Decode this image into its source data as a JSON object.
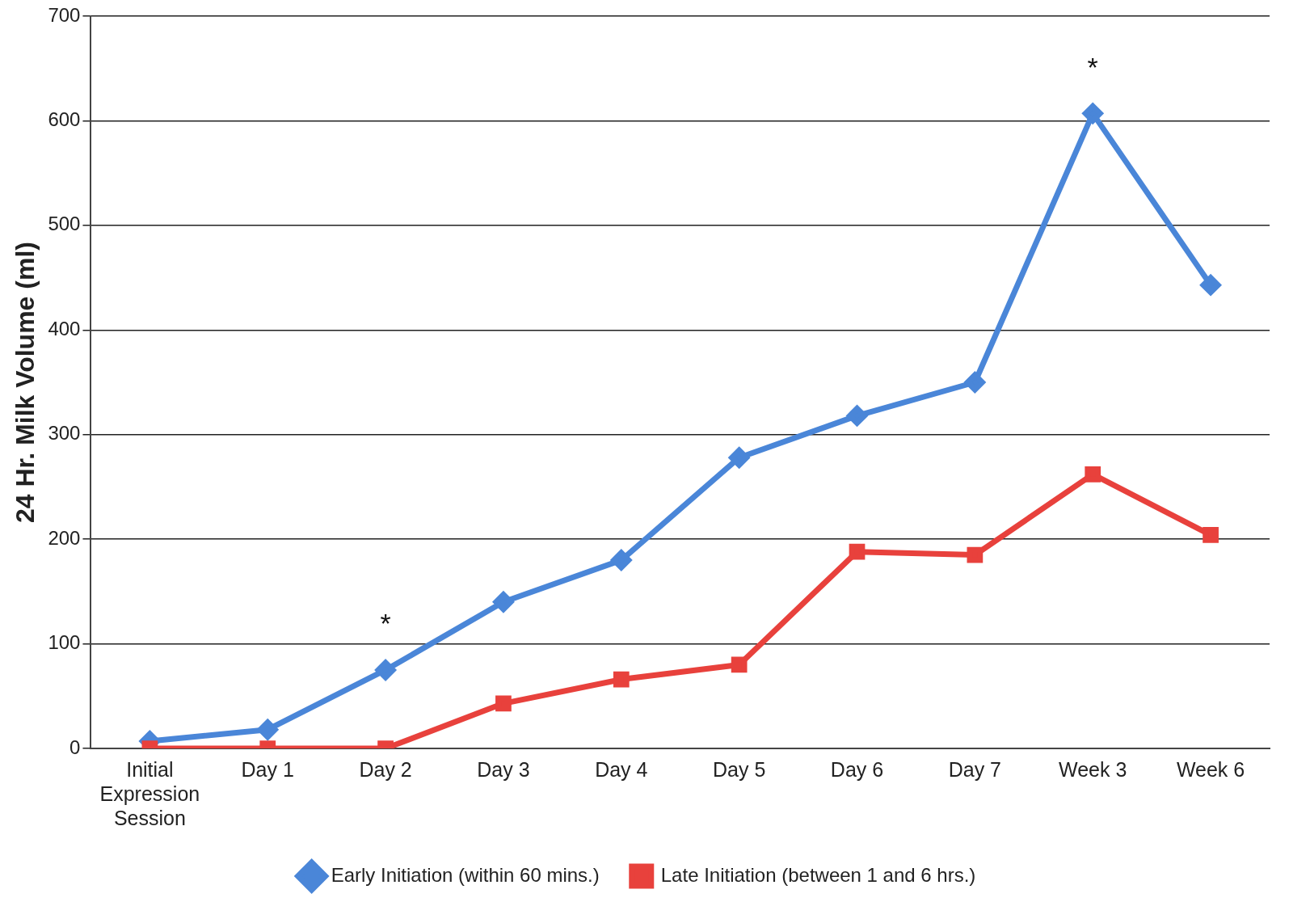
{
  "chart_data": {
    "type": "line",
    "ylabel": "24 Hr. Milk Volume (ml)",
    "categories": [
      "Initial Expression Session",
      "Day 1",
      "Day 2",
      "Day 3",
      "Day 4",
      "Day 5",
      "Day 6",
      "Day 7",
      "Week 3",
      "Week 6"
    ],
    "series": [
      {
        "name": "Early Initiation (within 60 mins.)",
        "color": "#4a86d8",
        "marker": "diamond",
        "values": [
          7,
          18,
          75,
          140,
          180,
          278,
          318,
          350,
          607,
          443
        ]
      },
      {
        "name": "Late Initiation (between 1 and 6 hrs.)",
        "color": "#e8413c",
        "marker": "square",
        "values": [
          0,
          0,
          0,
          43,
          66,
          80,
          188,
          185,
          262,
          204
        ]
      }
    ],
    "ylim": [
      0,
      700
    ],
    "yticks": [
      0,
      100,
      200,
      300,
      400,
      500,
      600,
      700
    ],
    "grid": "y",
    "legend": "bottom",
    "line_style": "solid",
    "annotations": [
      {
        "text": "*",
        "x": "Day 2",
        "y": 75
      },
      {
        "text": "*",
        "x": "Week 3",
        "y": 607
      }
    ]
  }
}
